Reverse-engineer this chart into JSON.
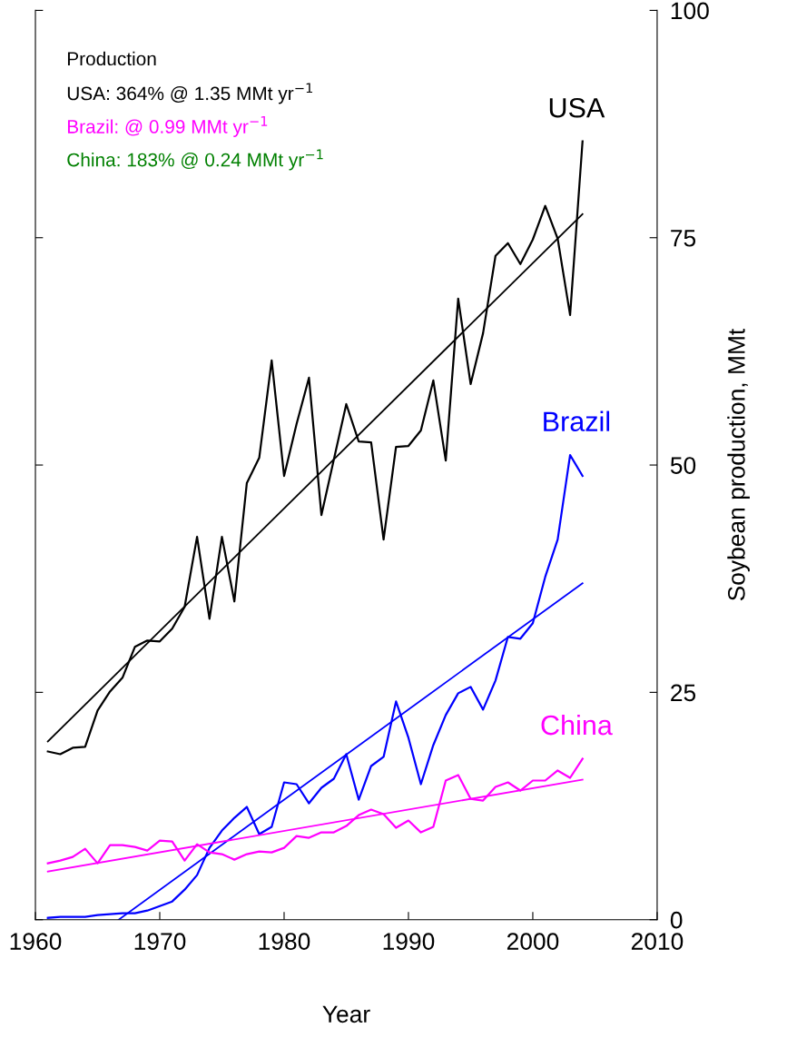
{
  "chart_data": {
    "type": "line",
    "xlabel": "Year",
    "ylabel": "Soybean production, MMt",
    "xlim": [
      1960,
      2010
    ],
    "xticks": [
      1960,
      1970,
      1980,
      1990,
      2000,
      2010
    ],
    "ylim": [
      0,
      100
    ],
    "yticks": [
      0,
      25,
      50,
      75,
      100
    ],
    "grid": false,
    "legend": false,
    "marker": "none",
    "line_style": "solid",
    "x": [
      1961,
      1962,
      1963,
      1964,
      1965,
      1966,
      1967,
      1968,
      1969,
      1970,
      1971,
      1972,
      1973,
      1974,
      1975,
      1976,
      1977,
      1978,
      1979,
      1980,
      1981,
      1982,
      1983,
      1984,
      1985,
      1986,
      1987,
      1988,
      1989,
      1990,
      1991,
      1992,
      1993,
      1994,
      1995,
      1996,
      1997,
      1998,
      1999,
      2000,
      2001,
      2002,
      2003,
      2004
    ],
    "series": [
      {
        "name": "USA",
        "color": "#000000",
        "values": [
          18.5,
          18.2,
          18.9,
          19.0,
          23.0,
          25.1,
          26.6,
          30.0,
          30.7,
          30.6,
          32.0,
          34.4,
          42.1,
          33.1,
          42.1,
          35.0,
          48.0,
          50.8,
          61.5,
          48.8,
          54.5,
          59.6,
          44.5,
          50.6,
          56.7,
          52.6,
          52.5,
          41.8,
          52.0,
          52.1,
          53.8,
          59.3,
          50.5,
          68.3,
          58.9,
          64.5,
          73.0,
          74.4,
          72.1,
          74.8,
          78.5,
          74.9,
          66.5,
          85.6
        ]
      },
      {
        "type": "line",
        "color": "#000000",
        "x": [
          1961,
          2004
        ],
        "values": [
          19.6,
          77.6
        ]
      },
      {
        "name": "Brazil",
        "color": "#0000ff",
        "values": [
          0.2,
          0.3,
          0.3,
          0.3,
          0.5,
          0.6,
          0.7,
          0.7,
          1.0,
          1.5,
          2.0,
          3.3,
          4.9,
          7.9,
          9.8,
          11.2,
          12.4,
          9.4,
          10.2,
          15.1,
          14.9,
          12.8,
          14.5,
          15.5,
          18.2,
          13.2,
          16.9,
          17.9,
          24.0,
          20.0,
          14.9,
          19.2,
          22.5,
          24.9,
          25.6,
          23.1,
          26.3,
          31.1,
          30.9,
          32.6,
          37.7,
          41.8,
          51.1,
          48.8
        ]
      },
      {
        "type": "line",
        "color": "#0000ff",
        "x": [
          1966.7,
          2004
        ],
        "values": [
          0,
          37.0
        ]
      },
      {
        "name": "China",
        "color": "#ff00ff",
        "values": [
          6.2,
          6.5,
          6.9,
          7.8,
          6.2,
          8.2,
          8.2,
          8.0,
          7.6,
          8.7,
          8.6,
          6.5,
          8.3,
          7.4,
          7.2,
          6.6,
          7.2,
          7.5,
          7.4,
          7.9,
          9.2,
          9.0,
          9.6,
          9.6,
          10.3,
          11.5,
          12.1,
          11.6,
          10.1,
          10.9,
          9.6,
          10.2,
          15.3,
          15.9,
          13.3,
          13.1,
          14.6,
          15.1,
          14.2,
          15.3,
          15.3,
          16.4,
          15.6,
          17.7
        ]
      },
      {
        "type": "line",
        "color": "#ff00ff",
        "x": [
          1961,
          2004
        ],
        "values": [
          5.3,
          15.4
        ]
      }
    ],
    "annotations": [
      "Production",
      "USA: 364% @ 1.35 MMt yr$^{−1}$",
      "Brazil: @ 0.99 MMt yr$^{−1}$",
      "China: 183% @ 0.24 MMt yr$^{−1}$"
    ]
  }
}
